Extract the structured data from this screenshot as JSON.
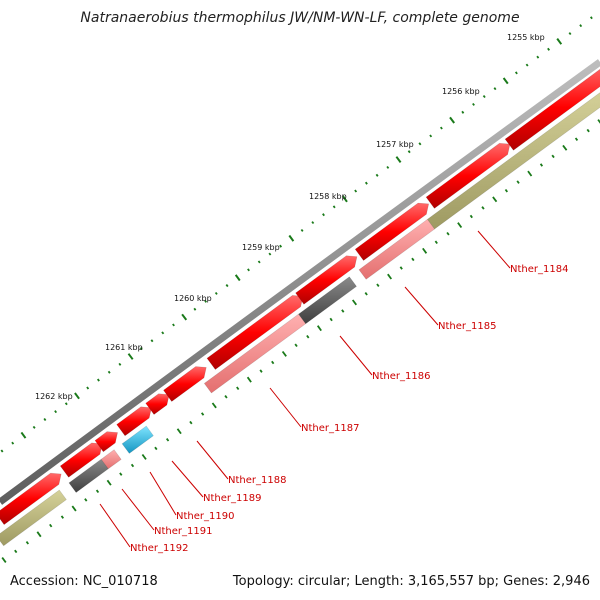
{
  "title": "Natranaerobius thermophilus JW/NM-WN-LF, complete genome",
  "footer": {
    "accession": "Accession: NC_010718",
    "summary": "Topology: circular; Length: 3,165,557 bp; Genes: 2,946"
  },
  "ticks": [
    "1255 kbp",
    "1256 kbp",
    "1257 kbp",
    "1258 kbp",
    "1259 kbp",
    "1260 kbp",
    "1261 kbp",
    "1262 kbp"
  ],
  "genes": [
    "Nther_1184",
    "Nther_1185",
    "Nther_1186",
    "Nther_1187",
    "Nther_1188",
    "Nther_1189",
    "Nther_1190",
    "Nther_1191",
    "Nther_1192"
  ],
  "colors": {
    "cds_forward": "#ff0000",
    "rna_light": "#f08080",
    "gray_feature": "#606060",
    "olive_feature": "#b8b47a",
    "cyan_feature": "#22b8e0",
    "label_red": "#cc0000",
    "tick_green": "#1a7a1a",
    "backbone": "#808080"
  }
}
